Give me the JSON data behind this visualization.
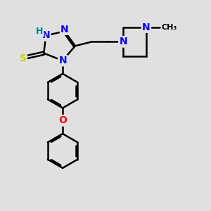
{
  "background_color": "#e0e0e0",
  "atom_colors": {
    "N": "#0000ff",
    "H": "#008080",
    "S": "#cccc00",
    "O": "#ff0000",
    "C": "#000000"
  },
  "bond_color": "#000000",
  "bond_width": 1.8,
  "font_size_atom": 10,
  "font_size_small": 8
}
